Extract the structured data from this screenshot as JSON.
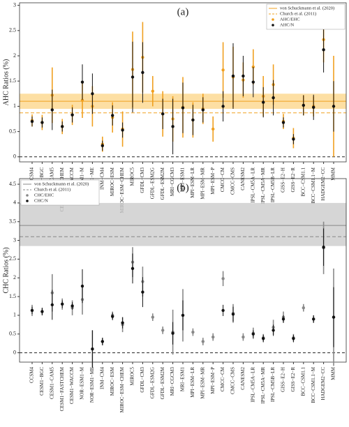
{
  "chart_data": [
    {
      "type": "errorbar",
      "title": "(a)",
      "y_label": "AHC Ratios (%)",
      "categories": [
        "CCSM4",
        "CESM1−BGC",
        "CESM1−CAM5",
        "CESM1−FASTCHEM",
        "CESM1−WACCM",
        "NOR−ESM1−M",
        "NOR−ESM1−ME",
        "INM−CM4",
        "MIROC−ESM",
        "MIROC−ESM−CHEM",
        "MIROC5",
        "GFDL−CM3",
        "GFDL−ESM2G",
        "GFDL−ESM2M",
        "MRI−CGCM3",
        "MRI−ESM1",
        "MPI−ESM−LR",
        "MPI−ESM−MR",
        "MPI−ESM−P",
        "CMCC−CM",
        "CMCC−CMS",
        "CANESM2",
        "IPSL−CM5A−LR",
        "IPSL−CM5A−MR",
        "IPSL−CM5B−LR",
        "GISS−E2−H",
        "GISS−E2−R",
        "BCC−CSM1.1",
        "BCC−CSM1.1−M",
        "HADGEM2−CC",
        "MMM"
      ],
      "series": [
        {
          "name": "AHC/EHC",
          "color": "#f0a020",
          "values": [
            0.72,
            0.68,
            1.22,
            0.6,
            0.83,
            1.12,
            1.0,
            0.25,
            0.78,
            0.55,
            1.73,
            1.97,
            1.3,
            0.85,
            0.75,
            0.98,
            0.73,
            0.95,
            0.55,
            1.72,
            1.58,
            1.52,
            1.78,
            1.2,
            1.43,
            0.7,
            0.37,
            1.02,
            1.0,
            2.32,
            1.0
          ],
          "errors": [
            0.12,
            0.15,
            0.55,
            0.15,
            0.2,
            0.35,
            0.4,
            0.15,
            0.3,
            0.35,
            0.75,
            0.7,
            0.3,
            0.45,
            0.45,
            0.6,
            0.35,
            0.3,
            0.25,
            0.55,
            0.6,
            0.35,
            0.35,
            0.4,
            0.4,
            0.15,
            0.2,
            0.2,
            0.2,
            0.45,
            1.0
          ]
        },
        {
          "name": "AHC/N",
          "color": "#111111",
          "values": [
            0.7,
            0.68,
            0.93,
            0.6,
            0.83,
            1.48,
            1.25,
            0.22,
            0.82,
            0.53,
            1.58,
            1.67,
            null,
            0.85,
            0.6,
            0.97,
            0.73,
            0.93,
            null,
            1.0,
            1.6,
            1.6,
            1.48,
            1.08,
            1.17,
            0.68,
            0.35,
            1.02,
            0.98,
            2.12,
            1.0
          ],
          "errors": [
            0.1,
            0.1,
            0.4,
            0.1,
            0.15,
            0.35,
            0.4,
            0.1,
            0.2,
            0.15,
            0.7,
            0.6,
            null,
            0.3,
            0.55,
            0.5,
            0.3,
            0.25,
            null,
            0.3,
            0.65,
            0.4,
            0.3,
            0.3,
            0.35,
            0.1,
            0.1,
            0.2,
            0.25,
            0.45,
            0.5
          ]
        }
      ],
      "references": [
        {
          "name": "von Schuckmann et al. (2020)",
          "value": 1.1,
          "band": [
            0.95,
            1.25
          ],
          "color": "#f0a020",
          "band_color": "#fcd78c",
          "style": "solid"
        },
        {
          "name": "Church et al. (2011)",
          "value": 0.87,
          "color": "#f0a020",
          "style": "dashed"
        }
      ],
      "ylim": [
        -0.1,
        3.05
      ],
      "yticks": [
        0,
        0.5,
        1,
        1.5,
        2,
        2.5,
        3
      ],
      "legend": "upper right"
    },
    {
      "type": "errorbar",
      "title": "(b)",
      "y_label": "CHC Ratios (%)",
      "categories": [
        "CCSM4",
        "CESM1−BGC",
        "CESM1−CAM5",
        "CESM1−FASTCHEM",
        "CESM1−WACCM",
        "NOR−ESM1−M",
        "NOR−ESM1−ME",
        "INM−CM4",
        "MIROC−ESM",
        "MIROC−ESM−CHEM",
        "MIROC5",
        "GFDL−CM3",
        "GFDL−ESM2G",
        "GFDL−ESM2M",
        "MRI−CGCM3",
        "MRI−ESM1",
        "MPI−ESM−LR",
        "MPI−ESM−MR",
        "MPI−ESM−P",
        "CMCC−CM",
        "CMCC−CMS",
        "CANESM2",
        "IPSL−CM5A−LR",
        "IPSL−CM5A−MR",
        "IPSL−CM5B−LR",
        "GISS−E2−H",
        "GISS−E2−R",
        "BCC−CSM1.1",
        "BCC−CSM1.1−M",
        "HADGEM2−CC",
        "MMM"
      ],
      "series": [
        {
          "name": "CHC/EHC",
          "color": "#888888",
          "values": [
            1.13,
            1.1,
            1.6,
            1.3,
            1.2,
            1.42,
            0.1,
            0.3,
            1.0,
            0.75,
            2.42,
            1.9,
            0.95,
            0.6,
            0.55,
            1.0,
            0.55,
            0.3,
            0.42,
            1.98,
            1.05,
            0.42,
            0.52,
            0.4,
            0.68,
            0.95,
            0.4,
            1.2,
            0.9,
            2.8,
            0.95
          ],
          "errors": [
            0.15,
            0.1,
            0.5,
            0.15,
            0.2,
            0.4,
            0.5,
            0.1,
            0.1,
            0.2,
            0.4,
            0.4,
            0.1,
            0.1,
            0.6,
            0.7,
            0.1,
            0.1,
            0.1,
            0.2,
            0.25,
            0.1,
            0.15,
            0.1,
            0.2,
            0.15,
            0.1,
            0.1,
            0.1,
            0.7,
            1.3
          ]
        },
        {
          "name": "CHC/N",
          "color": "#111111",
          "values": [
            1.13,
            1.1,
            1.28,
            1.3,
            1.25,
            1.78,
            0.1,
            0.3,
            0.97,
            0.8,
            2.25,
            1.62,
            null,
            null,
            0.52,
            1.0,
            null,
            null,
            null,
            1.13,
            1.03,
            null,
            0.5,
            0.38,
            0.6,
            0.9,
            0.38,
            null,
            0.9,
            2.82,
            0.95
          ],
          "errors": [
            0.1,
            0.1,
            0.4,
            0.1,
            0.1,
            0.45,
            0.5,
            0.1,
            0.1,
            0.15,
            0.4,
            0.4,
            null,
            null,
            0.3,
            0.4,
            null,
            null,
            null,
            0.15,
            0.2,
            null,
            0.1,
            0.1,
            0.15,
            0.1,
            0.1,
            null,
            0.1,
            0.5,
            0.8
          ]
        }
      ],
      "references": [
        {
          "name": "von Schuckmann et al. (2020)",
          "value": 3.4,
          "band": [
            2.85,
            4.0
          ],
          "color": "#888888",
          "band_color": "#cccccc",
          "style": "solid"
        },
        {
          "name": "Church et al. (2011)",
          "value": 3.1,
          "color": "#888888",
          "style": "dashed"
        }
      ],
      "ylim": [
        -0.25,
        4.65
      ],
      "yticks": [
        0,
        0.5,
        1,
        1.5,
        2,
        2.5,
        3,
        3.5,
        4,
        4.5
      ],
      "legend": "upper left"
    }
  ]
}
